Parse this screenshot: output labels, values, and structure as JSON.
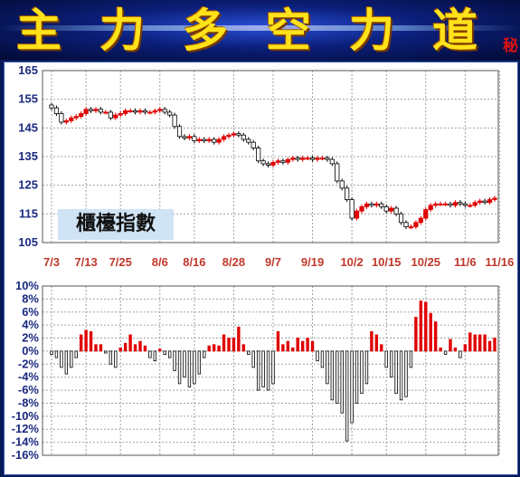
{
  "header": {
    "title_chars": [
      "主",
      "力",
      "多",
      "空",
      "力",
      "道"
    ],
    "secret_char": "秘"
  },
  "stock_label": "櫃檯指數",
  "colors": {
    "up": "#e00000",
    "down": "#000000",
    "grid": "#a0a0a0",
    "tick": "#1a2a80",
    "date": "#c0392b"
  },
  "chart_data": [
    {
      "type": "candlestick",
      "ylim": [
        105,
        165
      ],
      "yticks": [
        105,
        115,
        125,
        135,
        145,
        155,
        165
      ],
      "date_labels": [
        "7/3",
        "7/13",
        "7/25",
        "8/6",
        "8/16",
        "8/28",
        "9/7",
        "9/19",
        "10/2",
        "10/15",
        "10/25",
        "11/6",
        "11/16"
      ],
      "date_label_index": [
        0,
        7,
        14,
        22,
        29,
        37,
        45,
        53,
        61,
        68,
        76,
        84,
        91
      ],
      "close": [
        152.0,
        150.0,
        147.0,
        147.5,
        148.5,
        149.0,
        150.0,
        151.5,
        151.0,
        151.5,
        150.5,
        150.5,
        148.5,
        149.5,
        150.0,
        151.0,
        151.0,
        150.5,
        151.0,
        150.5,
        150.5,
        151.0,
        151.5,
        150.5,
        149.5,
        145.5,
        142.0,
        141.5,
        142.0,
        140.5,
        141.0,
        140.5,
        141.0,
        140.0,
        141.0,
        142.0,
        142.5,
        143.0,
        142.5,
        141.0,
        140.0,
        138.0,
        133.5,
        132.5,
        132.0,
        133.0,
        133.5,
        133.0,
        134.0,
        134.5,
        134.0,
        134.5,
        134.5,
        134.0,
        134.5,
        134.5,
        134.0,
        132.5,
        126.5,
        124.0,
        120.0,
        113.5,
        116.0,
        117.5,
        118.5,
        118.0,
        118.5,
        117.5,
        116.0,
        117.0,
        115.0,
        112.0,
        110.5,
        110.5,
        112.0,
        113.5,
        116.5,
        118.0,
        118.5,
        118.5,
        118.5,
        118.0,
        119.0,
        118.5,
        118.0,
        118.0,
        119.0,
        119.5,
        119.0,
        120.0,
        120.5
      ],
      "volume": [
        -0.5,
        -1.0,
        -2.5,
        -3.5,
        -2.5,
        -1.0,
        2.5,
        3.2,
        3.0,
        1.0,
        1.0,
        -0.3,
        -2.0,
        -2.5,
        0.5,
        1.2,
        2.5,
        1.0,
        1.5,
        0.8,
        -1.0,
        -1.5,
        0.3,
        -0.5,
        -1.0,
        -3.0,
        -5.0,
        -4.0,
        -5.5,
        -5.0,
        -3.5,
        -1.0,
        0.8,
        1.0,
        0.8,
        2.5,
        2.0,
        2.0,
        3.7,
        1.0,
        -0.5,
        -2.5,
        -6.0,
        -5.5,
        -6.0,
        -5.0,
        3.0,
        1.0,
        1.5,
        0.5,
        2.0,
        1.5,
        2.0,
        1.5,
        -1.5,
        -2.5,
        -5.0,
        -7.5,
        -8.0,
        -9.5,
        -13.8,
        -11.0,
        -8.0,
        -6.5,
        -5.0,
        3.0,
        2.5,
        1.0,
        -2.5,
        -4.0,
        -6.5,
        -7.5,
        -7.0,
        -2.5,
        5.2,
        7.7,
        7.5,
        5.8,
        4.5,
        0.5,
        -0.5,
        1.8,
        0.5,
        -1.0,
        1.0,
        2.8,
        2.5,
        2.5,
        2.5,
        1.5,
        2.0
      ]
    },
    {
      "type": "bar",
      "ylim": [
        -16,
        10
      ],
      "yticks": [
        "10%",
        "8%",
        "6%",
        "4%",
        "2%",
        "0%",
        "-2%",
        "-4%",
        "-6%",
        "-8%",
        "-10%",
        "-12%",
        "-14%",
        "-16%"
      ]
    }
  ]
}
